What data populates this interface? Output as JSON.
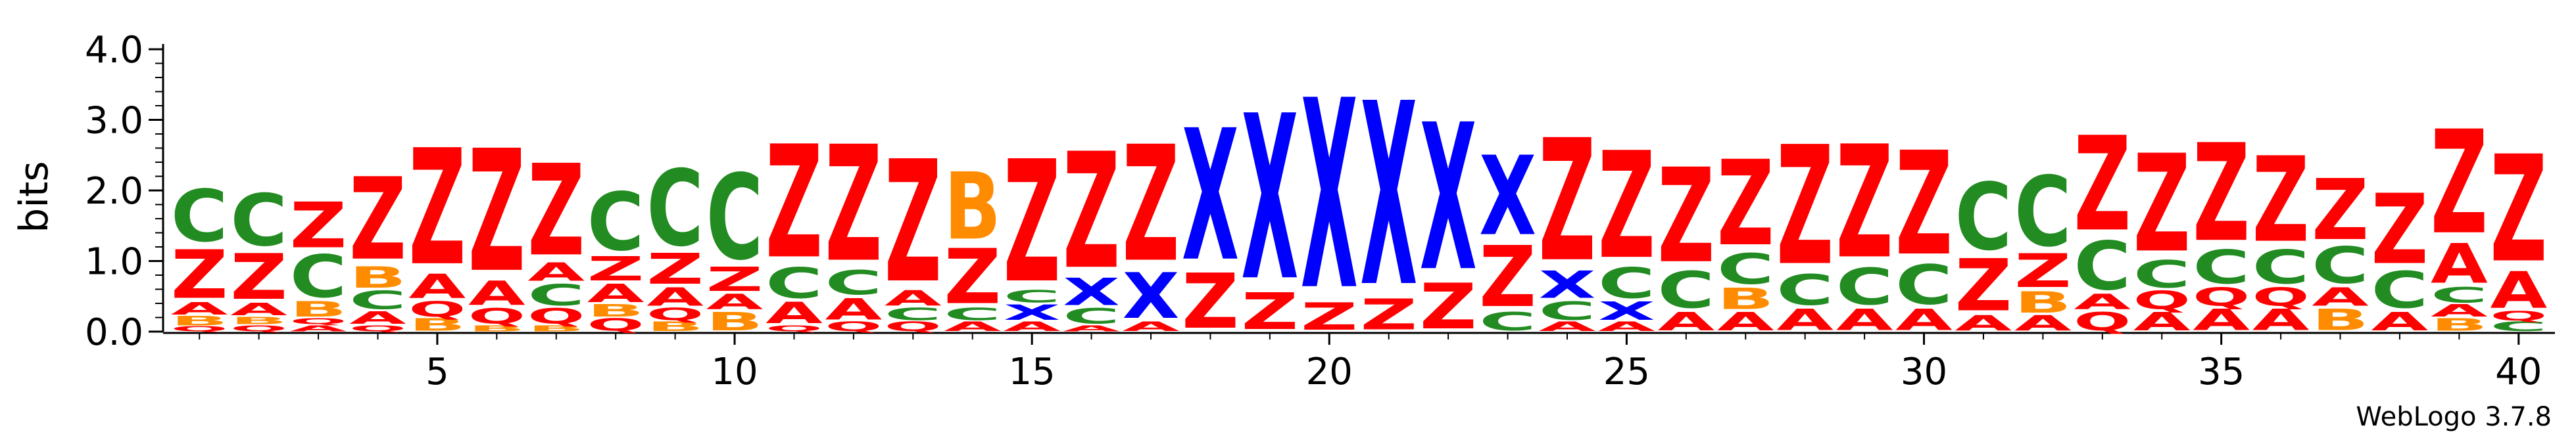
{
  "chart_data": {
    "type": "sequence-logo",
    "title": "",
    "xlabel": "",
    "ylabel": "bits",
    "ylim": [
      0,
      4.0
    ],
    "y_ticks": [
      "0.0",
      "1.0",
      "2.0",
      "3.0",
      "4.0"
    ],
    "x_ticks": [
      "5",
      "10",
      "15",
      "20",
      "25",
      "30",
      "35",
      "40"
    ],
    "x_range": [
      1,
      40
    ],
    "credit": "WebLogo 3.7.8",
    "colors": {
      "Z": "#ff0000",
      "C": "#228b22",
      "B": "#ff8c00",
      "A": "#ff0000",
      "Q": "#ff0000",
      "X": "#0000ff",
      "axis": "#000000"
    },
    "positions": [
      {
        "pos": 1,
        "letters": [
          [
            "Q",
            0.08
          ],
          [
            "B",
            0.15
          ],
          [
            "A",
            0.2
          ],
          [
            "Z",
            0.8
          ],
          [
            "C",
            0.85
          ]
        ]
      },
      {
        "pos": 2,
        "letters": [
          [
            "Q",
            0.1
          ],
          [
            "B",
            0.12
          ],
          [
            "A",
            0.2
          ],
          [
            "Z",
            0.75
          ],
          [
            "C",
            0.85
          ]
        ]
      },
      {
        "pos": 3,
        "letters": [
          [
            "A",
            0.1
          ],
          [
            "Q",
            0.1
          ],
          [
            "B",
            0.25
          ],
          [
            "C",
            0.7
          ],
          [
            "Z",
            0.75
          ]
        ]
      },
      {
        "pos": 4,
        "letters": [
          [
            "Q",
            0.1
          ],
          [
            "A",
            0.2
          ],
          [
            "C",
            0.3
          ],
          [
            "B",
            0.35
          ],
          [
            "Z",
            1.35
          ]
        ]
      },
      {
        "pos": 5,
        "letters": [
          [
            "B",
            0.2
          ],
          [
            "Q",
            0.25
          ],
          [
            "A",
            0.4
          ],
          [
            "Z",
            1.9
          ]
        ]
      },
      {
        "pos": 6,
        "letters": [
          [
            "B",
            0.1
          ],
          [
            "Q",
            0.25
          ],
          [
            "A",
            0.4
          ],
          [
            "Z",
            2.0
          ]
        ]
      },
      {
        "pos": 7,
        "letters": [
          [
            "B",
            0.1
          ],
          [
            "Q",
            0.25
          ],
          [
            "C",
            0.35
          ],
          [
            "A",
            0.3
          ],
          [
            "Z",
            1.5
          ]
        ]
      },
      {
        "pos": 8,
        "letters": [
          [
            "Q",
            0.2
          ],
          [
            "B",
            0.2
          ],
          [
            "A",
            0.3
          ],
          [
            "Z",
            0.4
          ],
          [
            "C",
            0.95
          ]
        ]
      },
      {
        "pos": 9,
        "letters": [
          [
            "B",
            0.15
          ],
          [
            "Q",
            0.2
          ],
          [
            "A",
            0.3
          ],
          [
            "Z",
            0.5
          ],
          [
            "C",
            1.25
          ]
        ]
      },
      {
        "pos": 10,
        "letters": [
          [
            "B",
            0.3
          ],
          [
            "A",
            0.25
          ],
          [
            "Z",
            0.4
          ],
          [
            "C",
            1.4
          ]
        ]
      },
      {
        "pos": 11,
        "letters": [
          [
            "Q",
            0.1
          ],
          [
            "A",
            0.35
          ],
          [
            "C",
            0.5
          ],
          [
            "Z",
            1.85
          ]
        ]
      },
      {
        "pos": 12,
        "letters": [
          [
            "Q",
            0.15
          ],
          [
            "A",
            0.35
          ],
          [
            "C",
            0.4
          ],
          [
            "Z",
            1.9
          ]
        ]
      },
      {
        "pos": 13,
        "letters": [
          [
            "Q",
            0.15
          ],
          [
            "C",
            0.2
          ],
          [
            "A",
            0.25
          ],
          [
            "Z",
            2.0
          ]
        ]
      },
      {
        "pos": 14,
        "letters": [
          [
            "A",
            0.15
          ],
          [
            "C",
            0.2
          ],
          [
            "Z",
            0.9
          ],
          [
            "B",
            1.1
          ]
        ]
      },
      {
        "pos": 15,
        "letters": [
          [
            "A",
            0.15
          ],
          [
            "X",
            0.25
          ],
          [
            "C",
            0.2
          ],
          [
            "Z",
            2.0
          ]
        ]
      },
      {
        "pos": 16,
        "letters": [
          [
            "A",
            0.1
          ],
          [
            "C",
            0.25
          ],
          [
            "X",
            0.45
          ],
          [
            "Z",
            1.9
          ]
        ]
      },
      {
        "pos": 17,
        "letters": [
          [
            "A",
            0.15
          ],
          [
            "X",
            0.75
          ],
          [
            "Z",
            1.9
          ]
        ]
      },
      {
        "pos": 18,
        "letters": [
          [
            "Z",
            0.9
          ],
          [
            "X",
            2.15
          ]
        ]
      },
      {
        "pos": 19,
        "letters": [
          [
            "Z",
            0.6
          ],
          [
            "X",
            2.7
          ]
        ]
      },
      {
        "pos": 20,
        "letters": [
          [
            "Z",
            0.45
          ],
          [
            "X",
            3.1
          ]
        ]
      },
      {
        "pos": 21,
        "letters": [
          [
            "Z",
            0.5
          ],
          [
            "X",
            3.0
          ]
        ]
      },
      {
        "pos": 22,
        "letters": [
          [
            "Z",
            0.75
          ],
          [
            "X",
            2.4
          ]
        ]
      },
      {
        "pos": 23,
        "letters": [
          [
            "C",
            0.3
          ],
          [
            "Z",
            1.0
          ],
          [
            "X",
            1.3
          ]
        ]
      },
      {
        "pos": 24,
        "letters": [
          [
            "A",
            0.15
          ],
          [
            "C",
            0.3
          ],
          [
            "X",
            0.45
          ],
          [
            "Z",
            2.0
          ]
        ]
      },
      {
        "pos": 25,
        "letters": [
          [
            "A",
            0.15
          ],
          [
            "X",
            0.3
          ],
          [
            "C",
            0.5
          ],
          [
            "Z",
            1.75
          ]
        ]
      },
      {
        "pos": 26,
        "letters": [
          [
            "A",
            0.3
          ],
          [
            "C",
            0.6
          ],
          [
            "Z",
            1.55
          ]
        ]
      },
      {
        "pos": 27,
        "letters": [
          [
            "A",
            0.3
          ],
          [
            "B",
            0.35
          ],
          [
            "C",
            0.5
          ],
          [
            "Z",
            1.4
          ]
        ]
      },
      {
        "pos": 28,
        "letters": [
          [
            "A",
            0.35
          ],
          [
            "C",
            0.5
          ],
          [
            "Z",
            1.95
          ]
        ]
      },
      {
        "pos": 29,
        "letters": [
          [
            "A",
            0.35
          ],
          [
            "C",
            0.6
          ],
          [
            "Z",
            1.85
          ]
        ]
      },
      {
        "pos": 30,
        "letters": [
          [
            "A",
            0.35
          ],
          [
            "C",
            0.65
          ],
          [
            "Z",
            1.7
          ]
        ]
      },
      {
        "pos": 31,
        "letters": [
          [
            "A",
            0.25
          ],
          [
            "Z",
            0.85
          ],
          [
            "C",
            1.1
          ]
        ]
      },
      {
        "pos": 32,
        "letters": [
          [
            "A",
            0.25
          ],
          [
            "B",
            0.35
          ],
          [
            "Z",
            0.55
          ],
          [
            "C",
            1.15
          ]
        ]
      },
      {
        "pos": 33,
        "letters": [
          [
            "Q",
            0.3
          ],
          [
            "A",
            0.25
          ],
          [
            "C",
            0.8
          ],
          [
            "Z",
            1.55
          ]
        ]
      },
      {
        "pos": 34,
        "letters": [
          [
            "A",
            0.3
          ],
          [
            "Q",
            0.3
          ],
          [
            "C",
            0.45
          ],
          [
            "Z",
            1.6
          ]
        ]
      },
      {
        "pos": 35,
        "letters": [
          [
            "A",
            0.35
          ],
          [
            "Q",
            0.3
          ],
          [
            "C",
            0.55
          ],
          [
            "Z",
            1.6
          ]
        ]
      },
      {
        "pos": 36,
        "letters": [
          [
            "A",
            0.35
          ],
          [
            "Q",
            0.3
          ],
          [
            "C",
            0.55
          ],
          [
            "Z",
            1.4
          ]
        ]
      },
      {
        "pos": 37,
        "letters": [
          [
            "B",
            0.35
          ],
          [
            "A",
            0.3
          ],
          [
            "C",
            0.6
          ],
          [
            "Z",
            1.0
          ]
        ]
      },
      {
        "pos": 38,
        "letters": [
          [
            "A",
            0.3
          ],
          [
            "C",
            0.6
          ],
          [
            "Z",
            1.15
          ]
        ]
      },
      {
        "pos": 39,
        "letters": [
          [
            "B",
            0.2
          ],
          [
            "A",
            0.2
          ],
          [
            "C",
            0.25
          ],
          [
            "A",
            0.65
          ],
          [
            "Z",
            1.7
          ]
        ]
      },
      {
        "pos": 40,
        "letters": [
          [
            "C",
            0.15
          ],
          [
            "Q",
            0.15
          ],
          [
            "A",
            0.6
          ],
          [
            "Z",
            1.75
          ]
        ]
      }
    ]
  }
}
